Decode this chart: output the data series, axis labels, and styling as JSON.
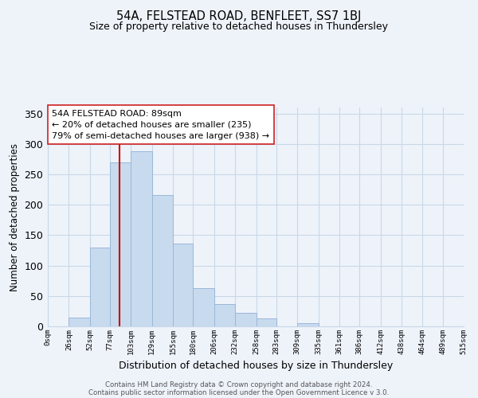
{
  "title1": "54A, FELSTEAD ROAD, BENFLEET, SS7 1BJ",
  "title2": "Size of property relative to detached houses in Thundersley",
  "xlabel": "Distribution of detached houses by size in Thundersley",
  "ylabel": "Number of detached properties",
  "bar_edges": [
    0,
    26,
    52,
    77,
    103,
    129,
    155,
    180,
    206,
    232,
    258,
    283,
    309,
    335,
    361,
    386,
    412,
    438,
    464,
    489,
    515
  ],
  "bar_heights": [
    0,
    14,
    130,
    270,
    288,
    216,
    136,
    63,
    37,
    22,
    13,
    0,
    5,
    0,
    0,
    0,
    0,
    0,
    0,
    0
  ],
  "bar_color": "#c8daee",
  "bar_edge_color": "#9ab8d8",
  "vline_x": 89,
  "vline_color": "#cc0000",
  "yticks": [
    0,
    50,
    100,
    150,
    200,
    250,
    300,
    350
  ],
  "ylim": [
    0,
    360
  ],
  "xtick_labels": [
    "0sqm",
    "26sqm",
    "52sqm",
    "77sqm",
    "103sqm",
    "129sqm",
    "155sqm",
    "180sqm",
    "206sqm",
    "232sqm",
    "258sqm",
    "283sqm",
    "309sqm",
    "335sqm",
    "361sqm",
    "386sqm",
    "412sqm",
    "438sqm",
    "464sqm",
    "489sqm",
    "515sqm"
  ],
  "annotation_title": "54A FELSTEAD ROAD: 89sqm",
  "annotation_line1": "← 20% of detached houses are smaller (235)",
  "annotation_line2": "79% of semi-detached houses are larger (938) →",
  "footer1": "Contains HM Land Registry data © Crown copyright and database right 2024.",
  "footer2": "Contains public sector information licensed under the Open Government Licence v 3.0.",
  "grid_color": "#c8d8e8",
  "background_color": "#eef3fa"
}
